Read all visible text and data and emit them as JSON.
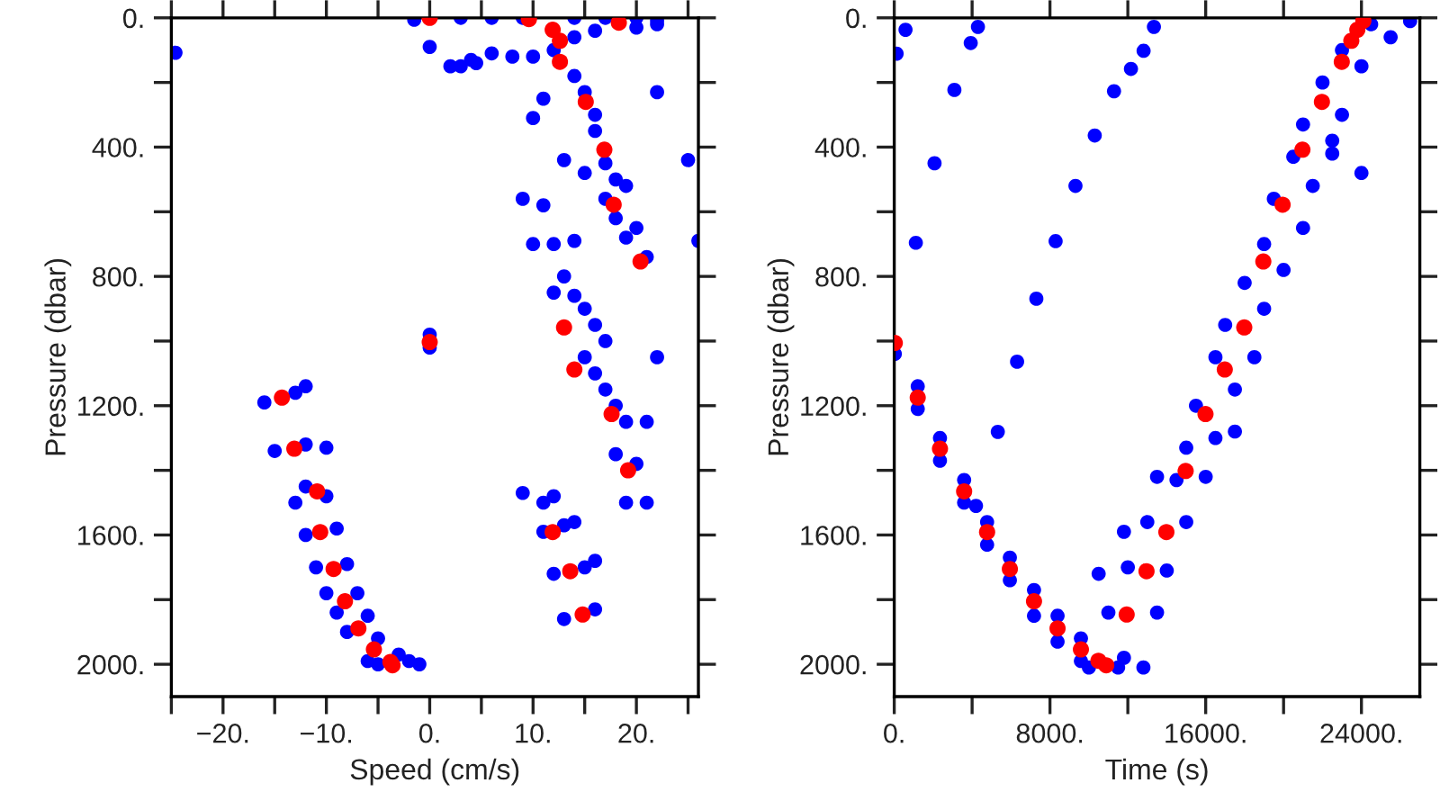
{
  "chart_data": [
    {
      "type": "scatter",
      "xlabel": "Speed (cm/s)",
      "ylabel": "Pressure (dbar)",
      "marker": "circle",
      "grid": false,
      "legend": false,
      "xlim": [
        -25,
        26
      ],
      "ylim": [
        2100,
        0
      ],
      "xticks": [
        {
          "value": -25,
          "label": null
        },
        {
          "value": -20,
          "label": "−20."
        },
        {
          "value": -15,
          "label": null
        },
        {
          "value": -10,
          "label": "−10."
        },
        {
          "value": -5,
          "label": null
        },
        {
          "value": 0,
          "label": "0."
        },
        {
          "value": 5,
          "label": null
        },
        {
          "value": 10,
          "label": "10."
        },
        {
          "value": 15,
          "label": null
        },
        {
          "value": 20,
          "label": "20."
        },
        {
          "value": 25,
          "label": null
        }
      ],
      "yticks": [
        {
          "value": 0,
          "label": "0."
        },
        {
          "value": 200,
          "label": null
        },
        {
          "value": 400,
          "label": "400."
        },
        {
          "value": 600,
          "label": null
        },
        {
          "value": 800,
          "label": "800."
        },
        {
          "value": 1000,
          "label": null
        },
        {
          "value": 1200,
          "label": "1200."
        },
        {
          "value": 1400,
          "label": null
        },
        {
          "value": 1600,
          "label": "1600."
        },
        {
          "value": 1800,
          "label": null
        },
        {
          "value": 2000,
          "label": "2000."
        }
      ],
      "series": [
        {
          "color": "#0000ff",
          "x": [
            -24.6,
            -1.5,
            3,
            6,
            9,
            14,
            17,
            20,
            22,
            0,
            2,
            4,
            6,
            8,
            10,
            12,
            14,
            16,
            20,
            22,
            3,
            4.5,
            14,
            15,
            16,
            16,
            17,
            18,
            19,
            18,
            19,
            17,
            20,
            21,
            22,
            25,
            26,
            9,
            11,
            13,
            15,
            11,
            10,
            14,
            10,
            12,
            13,
            14,
            15,
            12,
            16,
            17,
            15,
            16,
            17,
            18,
            19,
            18,
            20,
            19,
            21,
            21,
            22,
            9,
            11,
            12,
            11,
            13,
            14,
            12,
            15,
            16,
            13,
            16,
            0,
            0,
            -16,
            -13,
            -12,
            -15,
            -12,
            -10,
            -12,
            -10,
            -13,
            -12,
            -9,
            -11,
            -8,
            -10,
            -7,
            -9,
            -6,
            -8,
            -5,
            -6,
            -3,
            -2,
            -1,
            -5
          ],
          "values": [
            108,
            6,
            0,
            0,
            0,
            0,
            0,
            0,
            8,
            90,
            150,
            130,
            110,
            120,
            120,
            100,
            60,
            40,
            30,
            20,
            150,
            140,
            180,
            230,
            300,
            350,
            450,
            500,
            520,
            620,
            680,
            560,
            650,
            740,
            230,
            440,
            690,
            560,
            580,
            440,
            480,
            250,
            310,
            690,
            700,
            700,
            800,
            860,
            900,
            850,
            950,
            1000,
            1050,
            1100,
            1150,
            1200,
            1250,
            1350,
            1380,
            1500,
            1500,
            1250,
            1050,
            1470,
            1500,
            1480,
            1590,
            1570,
            1560,
            1720,
            1700,
            1680,
            1860,
            1830,
            980,
            1020,
            1190,
            1160,
            1140,
            1340,
            1320,
            1330,
            1450,
            1480,
            1500,
            1600,
            1580,
            1700,
            1690,
            1780,
            1780,
            1840,
            1850,
            1900,
            1920,
            1990,
            1970,
            1990,
            2000,
            2000
          ]
        },
        {
          "color": "#ff0000",
          "x": [
            -14.3,
            -13.1,
            -10.9,
            -10.6,
            -9.3,
            -8.2,
            -6.9,
            -5.4,
            -3.8,
            -3.6,
            0,
            0,
            9.6,
            11.9,
            12.6,
            12.6,
            15.1,
            16.9,
            17.8,
            20.4,
            18.3,
            13.0,
            14.0,
            17.6,
            19.2,
            11.9,
            13.6,
            14.8
          ],
          "values": [
            1175,
            1333,
            1465,
            1591,
            1705,
            1805,
            1889,
            1954,
            1993,
            2003,
            1003,
            0,
            4,
            37,
            71,
            136,
            260,
            408,
            578,
            754,
            15,
            958,
            1088,
            1226,
            1400,
            1591,
            1712,
            1846
          ]
        }
      ]
    },
    {
      "type": "scatter",
      "xlabel": "Time (s)",
      "ylabel": "Pressure (dbar)",
      "marker": "circle",
      "grid": false,
      "legend": false,
      "xlim": [
        0,
        27000
      ],
      "ylim": [
        2100,
        0
      ],
      "xticks": [
        {
          "value": 0,
          "label": "0."
        },
        {
          "value": 4000,
          "label": null
        },
        {
          "value": 8000,
          "label": "8000."
        },
        {
          "value": 12000,
          "label": null
        },
        {
          "value": 16000,
          "label": "16000."
        },
        {
          "value": 20000,
          "label": null
        },
        {
          "value": 24000,
          "label": "24000."
        }
      ],
      "yticks": [
        {
          "value": 0,
          "label": "0."
        },
        {
          "value": 200,
          "label": null
        },
        {
          "value": 400,
          "label": "400."
        },
        {
          "value": 600,
          "label": null
        },
        {
          "value": 800,
          "label": "800."
        },
        {
          "value": 1000,
          "label": null
        },
        {
          "value": 1200,
          "label": "1200."
        },
        {
          "value": 1400,
          "label": null
        },
        {
          "value": 1600,
          "label": "1600."
        },
        {
          "value": 1800,
          "label": null
        },
        {
          "value": 2000,
          "label": "2000."
        }
      ],
      "series": [
        {
          "color": "#0000ff",
          "x": [
            120,
            580,
            1110,
            2070,
            3090,
            3930,
            4300,
            5320,
            6310,
            7300,
            8290,
            9310,
            10300,
            11290,
            12160,
            12810,
            13340,
            30,
            1207,
            1207,
            2350,
            2350,
            3590,
            3590,
            4200,
            4770,
            4770,
            5940,
            5940,
            7180,
            7180,
            8390,
            8390,
            9590,
            9590,
            10000,
            11500,
            12800,
            11800,
            11000,
            13500,
            10500,
            14000,
            12000,
            11800,
            15000,
            13000,
            14500,
            16000,
            13500,
            15000,
            16500,
            17500,
            15500,
            17500,
            16500,
            18500,
            17000,
            19000,
            18000,
            20000,
            19000,
            21000,
            19500,
            21500,
            20500,
            22500,
            21000,
            23000,
            22000,
            24000,
            23000,
            25500,
            24500,
            26500,
            22500,
            24000
          ],
          "values": [
            111,
            37,
            696,
            450,
            223,
            78,
            28,
            1281,
            1064,
            869,
            691,
            520,
            364,
            227,
            158,
            102,
            28,
            1040,
            1140,
            1210,
            1300,
            1370,
            1430,
            1500,
            1510,
            1560,
            1630,
            1670,
            1740,
            1770,
            1850,
            1850,
            1930,
            1920,
            1990,
            2010,
            2010,
            2010,
            1980,
            1840,
            1840,
            1720,
            1710,
            1700,
            1590,
            1560,
            1560,
            1430,
            1420,
            1420,
            1330,
            1300,
            1280,
            1200,
            1150,
            1050,
            1050,
            950,
            900,
            820,
            780,
            700,
            650,
            560,
            520,
            430,
            420,
            330,
            300,
            200,
            150,
            100,
            60,
            20,
            10,
            380,
            480
          ]
        },
        {
          "color": "#ff0000",
          "x": [
            30,
            1207,
            2350,
            3590,
            4770,
            5940,
            7180,
            8390,
            9590,
            10490,
            10890,
            11940,
            12960,
            13980,
            14970,
            15990,
            16980,
            17980,
            18960,
            19950,
            20970,
            21970,
            22990,
            23480,
            23790,
            24100
          ],
          "values": [
            1006,
            1175,
            1333,
            1465,
            1591,
            1705,
            1805,
            1889,
            1954,
            1989,
            2003,
            1846,
            1712,
            1591,
            1402,
            1226,
            1088,
            958,
            754,
            578,
            408,
            260,
            136,
            71,
            37,
            9
          ]
        }
      ]
    }
  ]
}
